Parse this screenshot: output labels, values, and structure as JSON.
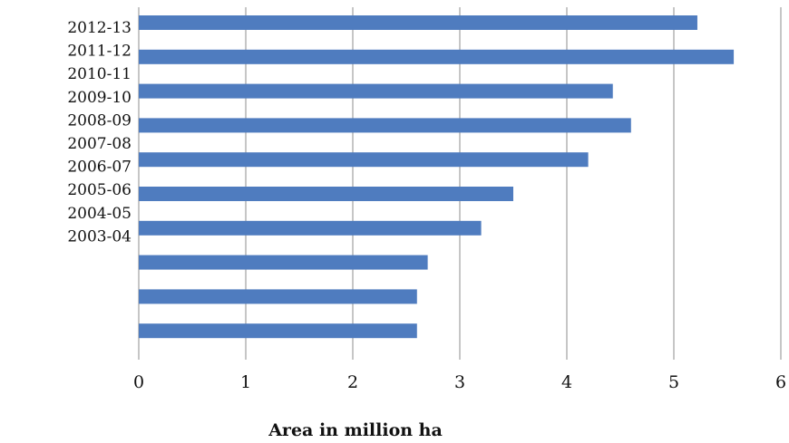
{
  "chart_data": {
    "type": "bar",
    "orientation": "horizontal",
    "categories": [
      "2012-13",
      "2011-12",
      "2010-11",
      "2009-10",
      "2008-09",
      "2007-08",
      "2006-07",
      "2005-06",
      "2004-05",
      "2003-04"
    ],
    "values": [
      5.22,
      5.56,
      4.43,
      4.6,
      4.2,
      3.5,
      3.2,
      2.7,
      2.6,
      2.6
    ],
    "xlabel": "Area in million ha",
    "xlim": [
      0,
      6
    ],
    "xticks": [
      "0",
      "1",
      "2",
      "3",
      "4",
      "5",
      "6"
    ],
    "grid": "vertical",
    "colors": {
      "bar": "#4f7cbf",
      "grid": "#8c8c8c"
    }
  }
}
